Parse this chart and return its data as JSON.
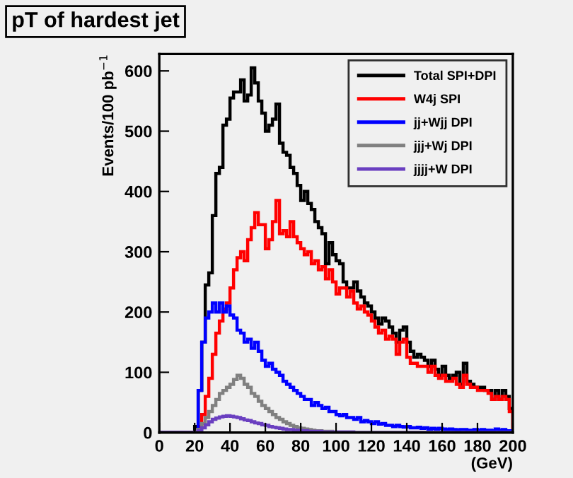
{
  "chart_data": {
    "type": "histogram",
    "title": "pT of hardest jet",
    "ylabel": "Events/100 pb$^{−1}$",
    "xlabel": "(GeV)",
    "bins": [
      0,
      2,
      4,
      6,
      8,
      10,
      12,
      14,
      16,
      18,
      20,
      22,
      24,
      26,
      28,
      30,
      32,
      34,
      36,
      38,
      40,
      42,
      44,
      46,
      48,
      50,
      52,
      54,
      56,
      58,
      60,
      62,
      64,
      66,
      68,
      70,
      72,
      74,
      76,
      78,
      80,
      82,
      84,
      86,
      88,
      90,
      92,
      94,
      96,
      98,
      100,
      102,
      104,
      106,
      108,
      110,
      112,
      114,
      116,
      118,
      120,
      122,
      124,
      126,
      128,
      130,
      132,
      134,
      136,
      138,
      140,
      142,
      144,
      146,
      148,
      150,
      152,
      154,
      156,
      158,
      160,
      162,
      164,
      166,
      168,
      170,
      172,
      174,
      176,
      178,
      180,
      182,
      184,
      186,
      188,
      190,
      192,
      194,
      196,
      198,
      200
    ],
    "series": [
      {
        "name": "Total SPI+DPI",
        "color": "#000000",
        "values": [
          0,
          0,
          0,
          0,
          0,
          0,
          0,
          0,
          0,
          0,
          10,
          70,
          150,
          245,
          265,
          360,
          430,
          440,
          510,
          520,
          555,
          565,
          565,
          585,
          550,
          560,
          605,
          580,
          550,
          530,
          500,
          510,
          520,
          545,
          480,
          465,
          460,
          440,
          430,
          410,
          385,
          400,
          380,
          370,
          350,
          340,
          330,
          280,
          315,
          295,
          285,
          280,
          250,
          240,
          240,
          250,
          235,
          225,
          215,
          210,
          200,
          190,
          180,
          190,
          185,
          175,
          165,
          150,
          170,
          175,
          150,
          135,
          125,
          130,
          125,
          120,
          110,
          120,
          105,
          95,
          110,
          95,
          90,
          95,
          100,
          80,
          115,
          85,
          80,
          75,
          75,
          75,
          70,
          70,
          55,
          70,
          55,
          70,
          60,
          40
        ]
      },
      {
        "name": "W4j SPI",
        "color": "#ff0000",
        "values": [
          0,
          0,
          0,
          0,
          0,
          0,
          0,
          0,
          0,
          0,
          0,
          10,
          30,
          60,
          90,
          130,
          165,
          185,
          205,
          215,
          240,
          270,
          290,
          300,
          285,
          320,
          340,
          365,
          345,
          345,
          305,
          320,
          350,
          385,
          330,
          335,
          325,
          350,
          325,
          315,
          305,
          295,
          300,
          280,
          285,
          270,
          275,
          255,
          270,
          250,
          230,
          240,
          240,
          225,
          235,
          215,
          205,
          210,
          200,
          195,
          185,
          175,
          165,
          170,
          155,
          160,
          155,
          130,
          150,
          155,
          125,
          115,
          115,
          110,
          110,
          110,
          100,
          110,
          95,
          90,
          95,
          85,
          85,
          90,
          80,
          75,
          95,
          80,
          75,
          75,
          70,
          70,
          70,
          65,
          55,
          60,
          55,
          60,
          55,
          35
        ]
      },
      {
        "name": "jj+Wjj DPI",
        "color": "#0000ff",
        "values": [
          0,
          0,
          0,
          0,
          0,
          0,
          0,
          0,
          0,
          0,
          0,
          70,
          150,
          190,
          200,
          215,
          200,
          215,
          200,
          210,
          195,
          190,
          170,
          165,
          150,
          155,
          140,
          150,
          135,
          120,
          110,
          115,
          105,
          100,
          95,
          85,
          80,
          75,
          70,
          65,
          60,
          55,
          55,
          45,
          50,
          45,
          40,
          42,
          35,
          35,
          30,
          28,
          30,
          25,
          25,
          22,
          25,
          18,
          20,
          18,
          15,
          18,
          14,
          15,
          12,
          12,
          10,
          12,
          10,
          9,
          10,
          8,
          8,
          9,
          7,
          8,
          6,
          7,
          6,
          7,
          6,
          5,
          6,
          5,
          4,
          5,
          5,
          4,
          4,
          5,
          3,
          5,
          4,
          4,
          3,
          6,
          4,
          5,
          3,
          3
        ]
      },
      {
        "name": "jjj+Wj DPI",
        "color": "#808080",
        "values": [
          0,
          0,
          0,
          0,
          0,
          0,
          0,
          0,
          0,
          0,
          0,
          5,
          15,
          25,
          35,
          45,
          55,
          65,
          70,
          75,
          80,
          88,
          95,
          90,
          80,
          75,
          65,
          60,
          52,
          45,
          40,
          35,
          30,
          25,
          22,
          18,
          15,
          12,
          10,
          8,
          7,
          6,
          5,
          4,
          3,
          3,
          2,
          2,
          2,
          1,
          1,
          1,
          1,
          1,
          1,
          0,
          0,
          0,
          0,
          0,
          0,
          0,
          0,
          0,
          0,
          0,
          0,
          0,
          0,
          0,
          0,
          0,
          0,
          0,
          0,
          0,
          0,
          0,
          0,
          0,
          0,
          0,
          0,
          0,
          0,
          0,
          0,
          0,
          0,
          0,
          0,
          0,
          0,
          0,
          0,
          0,
          0,
          0,
          0,
          0
        ]
      },
      {
        "name": "jjjj+W DPI",
        "color": "#6a3fc0",
        "values": [
          0,
          0,
          0,
          0,
          0,
          0,
          0,
          0,
          0,
          0,
          0,
          3,
          8,
          13,
          18,
          22,
          24,
          26,
          27,
          28,
          27,
          26,
          25,
          23,
          21,
          20,
          18,
          16,
          15,
          13,
          12,
          10,
          9,
          8,
          7,
          6,
          5,
          5,
          4,
          4,
          3,
          3,
          2,
          2,
          2,
          2,
          1,
          1,
          1,
          1,
          1,
          1,
          1,
          1,
          1,
          0,
          0,
          0,
          0,
          0,
          0,
          0,
          0,
          0,
          0,
          0,
          0,
          0,
          0,
          0,
          0,
          0,
          0,
          0,
          0,
          0,
          0,
          0,
          0,
          0,
          0,
          0,
          0,
          0,
          0,
          0,
          0,
          0,
          0,
          0,
          0,
          0,
          0,
          0,
          0,
          0,
          0,
          0,
          0,
          0
        ]
      }
    ],
    "xlim": [
      0,
      200
    ],
    "ylim": [
      0,
      628
    ],
    "xticks": [
      0,
      20,
      40,
      60,
      80,
      100,
      120,
      140,
      160,
      180,
      200
    ],
    "yticks": [
      0,
      100,
      200,
      300,
      400,
      500,
      600
    ],
    "legend": "top right",
    "grid": false
  }
}
